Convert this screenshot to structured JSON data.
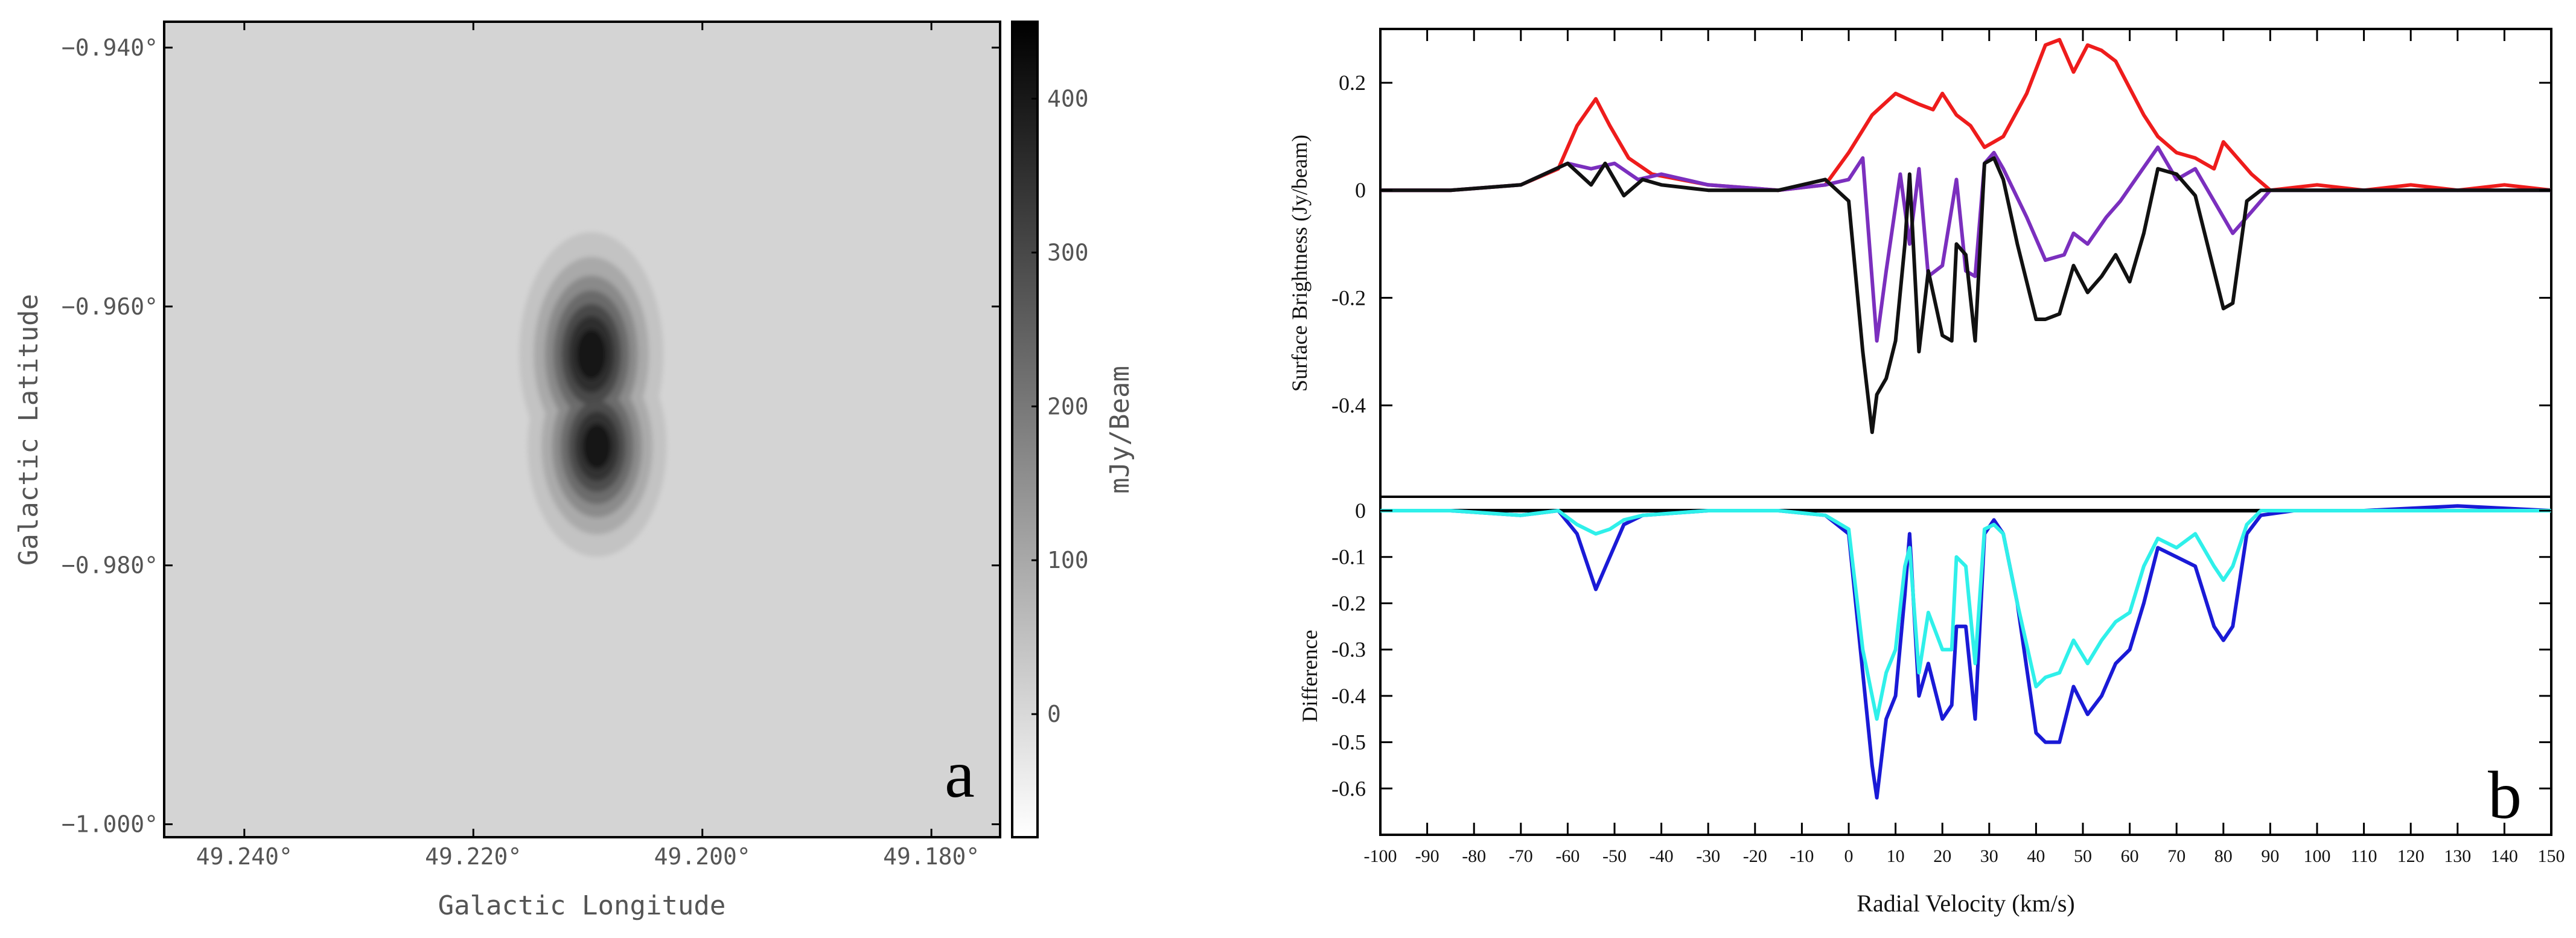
{
  "chart_data": [
    {
      "panel": "a",
      "type": "heatmap",
      "xlabel": "Galactic Longitude",
      "ylabel": "Galactic Latitude",
      "xlim": [
        49.247,
        49.174
      ],
      "ylim": [
        -1.001,
        -0.938
      ],
      "x_ticks": [
        49.24,
        49.22,
        49.2,
        49.18
      ],
      "x_tick_labels": [
        "49.240°",
        "49.220°",
        "49.200°",
        "49.180°"
      ],
      "y_ticks": [
        -0.94,
        -0.96,
        -0.98,
        -1.0
      ],
      "y_tick_labels": [
        "−0.940°",
        "−0.960°",
        "−0.980°",
        "−1.000°"
      ],
      "colorbar": {
        "label": "mJy/Beam",
        "range": [
          -80,
          450
        ],
        "ticks": [
          0,
          100,
          200,
          300,
          400
        ],
        "tick_labels": [
          "0",
          "100",
          "200",
          "300",
          "400"
        ]
      },
      "background_mJy": 10,
      "sources": [
        {
          "l": 49.2097,
          "b": -0.9637,
          "peak_mJy": 440,
          "sigma_l_deg": 0.0028,
          "sigma_b_deg": 0.0042
        },
        {
          "l": 49.2092,
          "b": -0.9708,
          "peak_mJy": 430,
          "sigma_l_deg": 0.0027,
          "sigma_b_deg": 0.0038
        }
      ],
      "panel_label": "a"
    },
    {
      "panel": "b",
      "type": "line",
      "xlabel": "Radial Velocity (km/s)",
      "xlim": [
        -100,
        150
      ],
      "x_ticks": [
        -100,
        -90,
        -80,
        -70,
        -60,
        -50,
        -40,
        -30,
        -20,
        -10,
        0,
        10,
        20,
        30,
        40,
        50,
        60,
        70,
        80,
        90,
        100,
        110,
        120,
        130,
        140,
        150
      ],
      "x_tick_labels": [
        "-100",
        "-90",
        "-80",
        "-70",
        "-60",
        "-50",
        "-40",
        "-30",
        "-20",
        "-10",
        "0",
        "10",
        "20",
        "30",
        "40",
        "50",
        "60",
        "70",
        "80",
        "90",
        "100",
        "110",
        "120",
        "130",
        "140",
        "150"
      ],
      "top": {
        "ylabel": "Surface Brightness (Jy/beam)",
        "ylim": [
          -0.57,
          0.3
        ],
        "y_ticks": [
          0.2,
          0,
          -0.2,
          -0.4
        ],
        "y_tick_labels": [
          "0.2",
          "0",
          "-0.2",
          "-0.4"
        ],
        "series": [
          {
            "name": "red",
            "color": "#ee1c1c",
            "x": [
              -100,
              -85,
              -70,
              -62,
              -58,
              -54,
              -51,
              -47,
              -42,
              -30,
              -15,
              -5,
              0,
              5,
              10,
              15,
              18,
              20,
              23,
              26,
              29,
              33,
              38,
              42,
              45,
              48,
              51,
              54,
              57,
              60,
              63,
              66,
              70,
              74,
              78,
              80,
              83,
              86,
              90,
              100,
              110,
              120,
              130,
              140,
              150
            ],
            "y": [
              0,
              0,
              0.01,
              0.04,
              0.12,
              0.17,
              0.12,
              0.06,
              0.03,
              0.01,
              0,
              0.01,
              0.07,
              0.14,
              0.18,
              0.16,
              0.15,
              0.18,
              0.14,
              0.12,
              0.08,
              0.1,
              0.18,
              0.27,
              0.28,
              0.22,
              0.27,
              0.26,
              0.24,
              0.19,
              0.14,
              0.1,
              0.07,
              0.06,
              0.04,
              0.09,
              0.06,
              0.03,
              0,
              0.01,
              0,
              0.01,
              0,
              0.01,
              0
            ]
          },
          {
            "name": "purple",
            "color": "#7b2fbe",
            "x": [
              -100,
              -85,
              -70,
              -60,
              -55,
              -50,
              -45,
              -40,
              -30,
              -15,
              -5,
              0,
              3,
              6,
              8,
              11,
              13,
              15,
              17,
              20,
              23,
              25,
              27,
              29,
              31,
              33,
              38,
              42,
              46,
              48,
              51,
              55,
              58,
              62,
              66,
              70,
              74,
              78,
              82,
              86,
              90,
              100,
              120,
              150
            ],
            "y": [
              0,
              0,
              0.01,
              0.05,
              0.04,
              0.05,
              0.02,
              0.03,
              0.01,
              0,
              0.01,
              0.02,
              0.06,
              -0.28,
              -0.15,
              0.03,
              -0.1,
              0.04,
              -0.16,
              -0.14,
              0.02,
              -0.15,
              -0.16,
              0.05,
              0.07,
              0.04,
              -0.05,
              -0.13,
              -0.12,
              -0.08,
              -0.1,
              -0.05,
              -0.02,
              0.03,
              0.08,
              0.02,
              0.04,
              -0.02,
              -0.08,
              -0.04,
              0,
              0,
              0,
              0
            ]
          },
          {
            "name": "black",
            "color": "#111111",
            "x": [
              -100,
              -85,
              -70,
              -60,
              -55,
              -52,
              -48,
              -44,
              -40,
              -30,
              -15,
              -5,
              0,
              3,
              5,
              6,
              8,
              10,
              12,
              13,
              15,
              17,
              20,
              22,
              23,
              25,
              27,
              29,
              31,
              33,
              36,
              40,
              42,
              45,
              48,
              51,
              54,
              57,
              60,
              63,
              66,
              70,
              74,
              78,
              80,
              82,
              85,
              88,
              95,
              110,
              130,
              150
            ],
            "y": [
              0,
              0,
              0.01,
              0.05,
              0.01,
              0.05,
              -0.01,
              0.02,
              0.01,
              0,
              0,
              0.02,
              -0.02,
              -0.3,
              -0.45,
              -0.38,
              -0.35,
              -0.28,
              -0.1,
              0.03,
              -0.3,
              -0.15,
              -0.27,
              -0.28,
              -0.1,
              -0.12,
              -0.28,
              0.05,
              0.06,
              0.02,
              -0.1,
              -0.24,
              -0.24,
              -0.23,
              -0.14,
              -0.19,
              -0.16,
              -0.12,
              -0.17,
              -0.08,
              0.04,
              0.03,
              -0.01,
              -0.15,
              -0.22,
              -0.21,
              -0.02,
              0,
              0,
              0,
              0,
              0
            ]
          }
        ]
      },
      "bottom": {
        "ylabel": "Difference",
        "ylim": [
          -0.7,
          0.03
        ],
        "y_ticks": [
          0,
          -0.1,
          -0.2,
          -0.3,
          -0.4,
          -0.5,
          -0.6
        ],
        "y_tick_labels": [
          "0",
          "-0.1",
          "-0.2",
          "-0.3",
          "-0.4",
          "-0.5",
          "-0.6"
        ],
        "series": [
          {
            "name": "blue",
            "color": "#1a1ad6",
            "x": [
              -100,
              -85,
              -70,
              -62,
              -58,
              -54,
              -51,
              -48,
              -44,
              -30,
              -15,
              -5,
              0,
              3,
              5,
              6,
              8,
              10,
              12,
              13,
              15,
              17,
              20,
              22,
              23,
              25,
              27,
              29,
              31,
              33,
              36,
              40,
              42,
              45,
              48,
              51,
              54,
              57,
              60,
              63,
              66,
              70,
              74,
              78,
              80,
              82,
              85,
              88,
              95,
              110,
              130,
              150
            ],
            "y": [
              0,
              0,
              -0.01,
              0,
              -0.05,
              -0.17,
              -0.1,
              -0.03,
              -0.01,
              0,
              0,
              -0.01,
              -0.05,
              -0.35,
              -0.55,
              -0.62,
              -0.45,
              -0.4,
              -0.18,
              -0.05,
              -0.4,
              -0.33,
              -0.45,
              -0.42,
              -0.25,
              -0.25,
              -0.45,
              -0.05,
              -0.02,
              -0.05,
              -0.2,
              -0.48,
              -0.5,
              -0.5,
              -0.38,
              -0.44,
              -0.4,
              -0.33,
              -0.3,
              -0.2,
              -0.08,
              -0.1,
              -0.12,
              -0.25,
              -0.28,
              -0.25,
              -0.05,
              -0.01,
              0,
              0,
              0.01,
              0
            ]
          },
          {
            "name": "cyan",
            "color": "#2ff0ea",
            "x": [
              -100,
              -85,
              -70,
              -62,
              -58,
              -54,
              -51,
              -48,
              -44,
              -30,
              -15,
              -5,
              0,
              3,
              5,
              6,
              8,
              10,
              12,
              13,
              15,
              17,
              20,
              22,
              23,
              25,
              27,
              29,
              31,
              33,
              36,
              40,
              42,
              45,
              48,
              51,
              54,
              57,
              60,
              63,
              66,
              70,
              74,
              78,
              80,
              82,
              85,
              88,
              95,
              110,
              130,
              150
            ],
            "y": [
              0,
              0,
              -0.01,
              0,
              -0.03,
              -0.05,
              -0.04,
              -0.02,
              -0.01,
              0,
              0,
              -0.01,
              -0.04,
              -0.3,
              -0.4,
              -0.45,
              -0.35,
              -0.3,
              -0.12,
              -0.08,
              -0.35,
              -0.22,
              -0.3,
              -0.3,
              -0.1,
              -0.12,
              -0.33,
              -0.04,
              -0.03,
              -0.05,
              -0.2,
              -0.38,
              -0.36,
              -0.35,
              -0.28,
              -0.33,
              -0.28,
              -0.24,
              -0.22,
              -0.12,
              -0.06,
              -0.08,
              -0.05,
              -0.12,
              -0.15,
              -0.12,
              -0.03,
              0,
              0,
              0,
              0,
              0
            ]
          }
        ]
      },
      "panel_label": "b"
    }
  ]
}
